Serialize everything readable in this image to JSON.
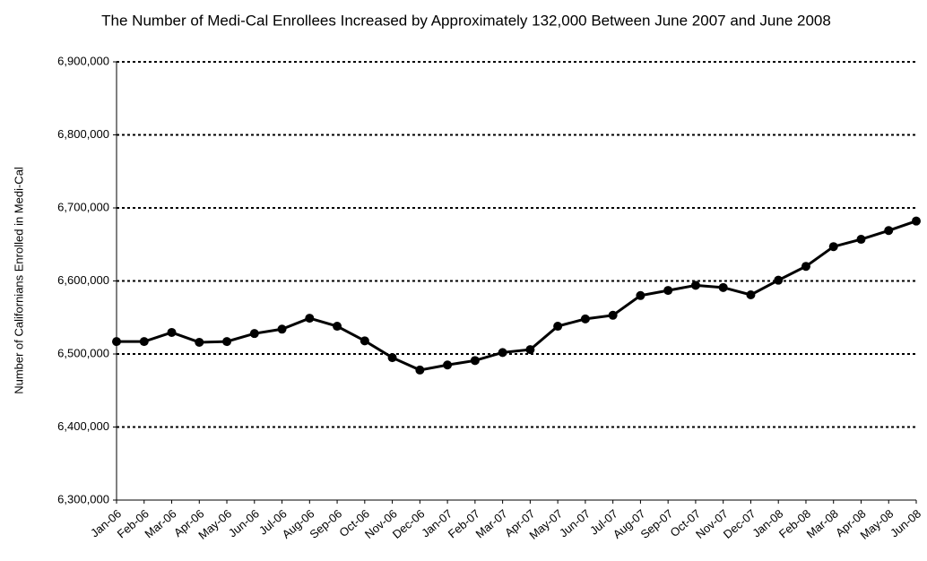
{
  "chart_data": {
    "type": "line",
    "title": "The Number of Medi-Cal Enrollees Increased by Approximately 132,000 Between June 2007 and June 2008",
    "y_label": "Number of Californians Enrolled in Medi-Cal",
    "categories": [
      "Jan-06",
      "Feb-06",
      "Mar-06",
      "Apr-06",
      "May-06",
      "Jun-06",
      "Jul-06",
      "Aug-06",
      "Sep-06",
      "Oct-06",
      "Nov-06",
      "Dec-06",
      "Jan-07",
      "Feb-07",
      "Mar-07",
      "Apr-07",
      "May-07",
      "Jun-07",
      "Jul-07",
      "Aug-07",
      "Sep-07",
      "Oct-07",
      "Nov-07",
      "Dec-07",
      "Jan-08",
      "Feb-08",
      "Mar-08",
      "Apr-08",
      "May-08",
      "Jun-08"
    ],
    "values": [
      6517000,
      6517000,
      6529500,
      6516000,
      6517000,
      6528000,
      6534000,
      6549000,
      6538000,
      6518000,
      6495000,
      6478000,
      6485000,
      6491000,
      6502000,
      6506000,
      6538000,
      6548000,
      6553000,
      6580000,
      6587000,
      6594000,
      6591000,
      6581000,
      6601000,
      6620000,
      6647000,
      6657000,
      6669000,
      6682000
    ],
    "color": "#000000",
    "ylim": [
      6300000,
      6900000
    ],
    "yticks": [
      {
        "value": 6300000,
        "label": "6,300,000"
      },
      {
        "value": 6400000,
        "label": "6,400,000"
      },
      {
        "value": 6500000,
        "label": "6,500,000"
      },
      {
        "value": 6600000,
        "label": "6,600,000"
      },
      {
        "value": 6700000,
        "label": "6,700,000"
      },
      {
        "value": 6800000,
        "label": "6,800,000"
      },
      {
        "value": 6900000,
        "label": "6,900,000"
      }
    ],
    "grid": true
  }
}
